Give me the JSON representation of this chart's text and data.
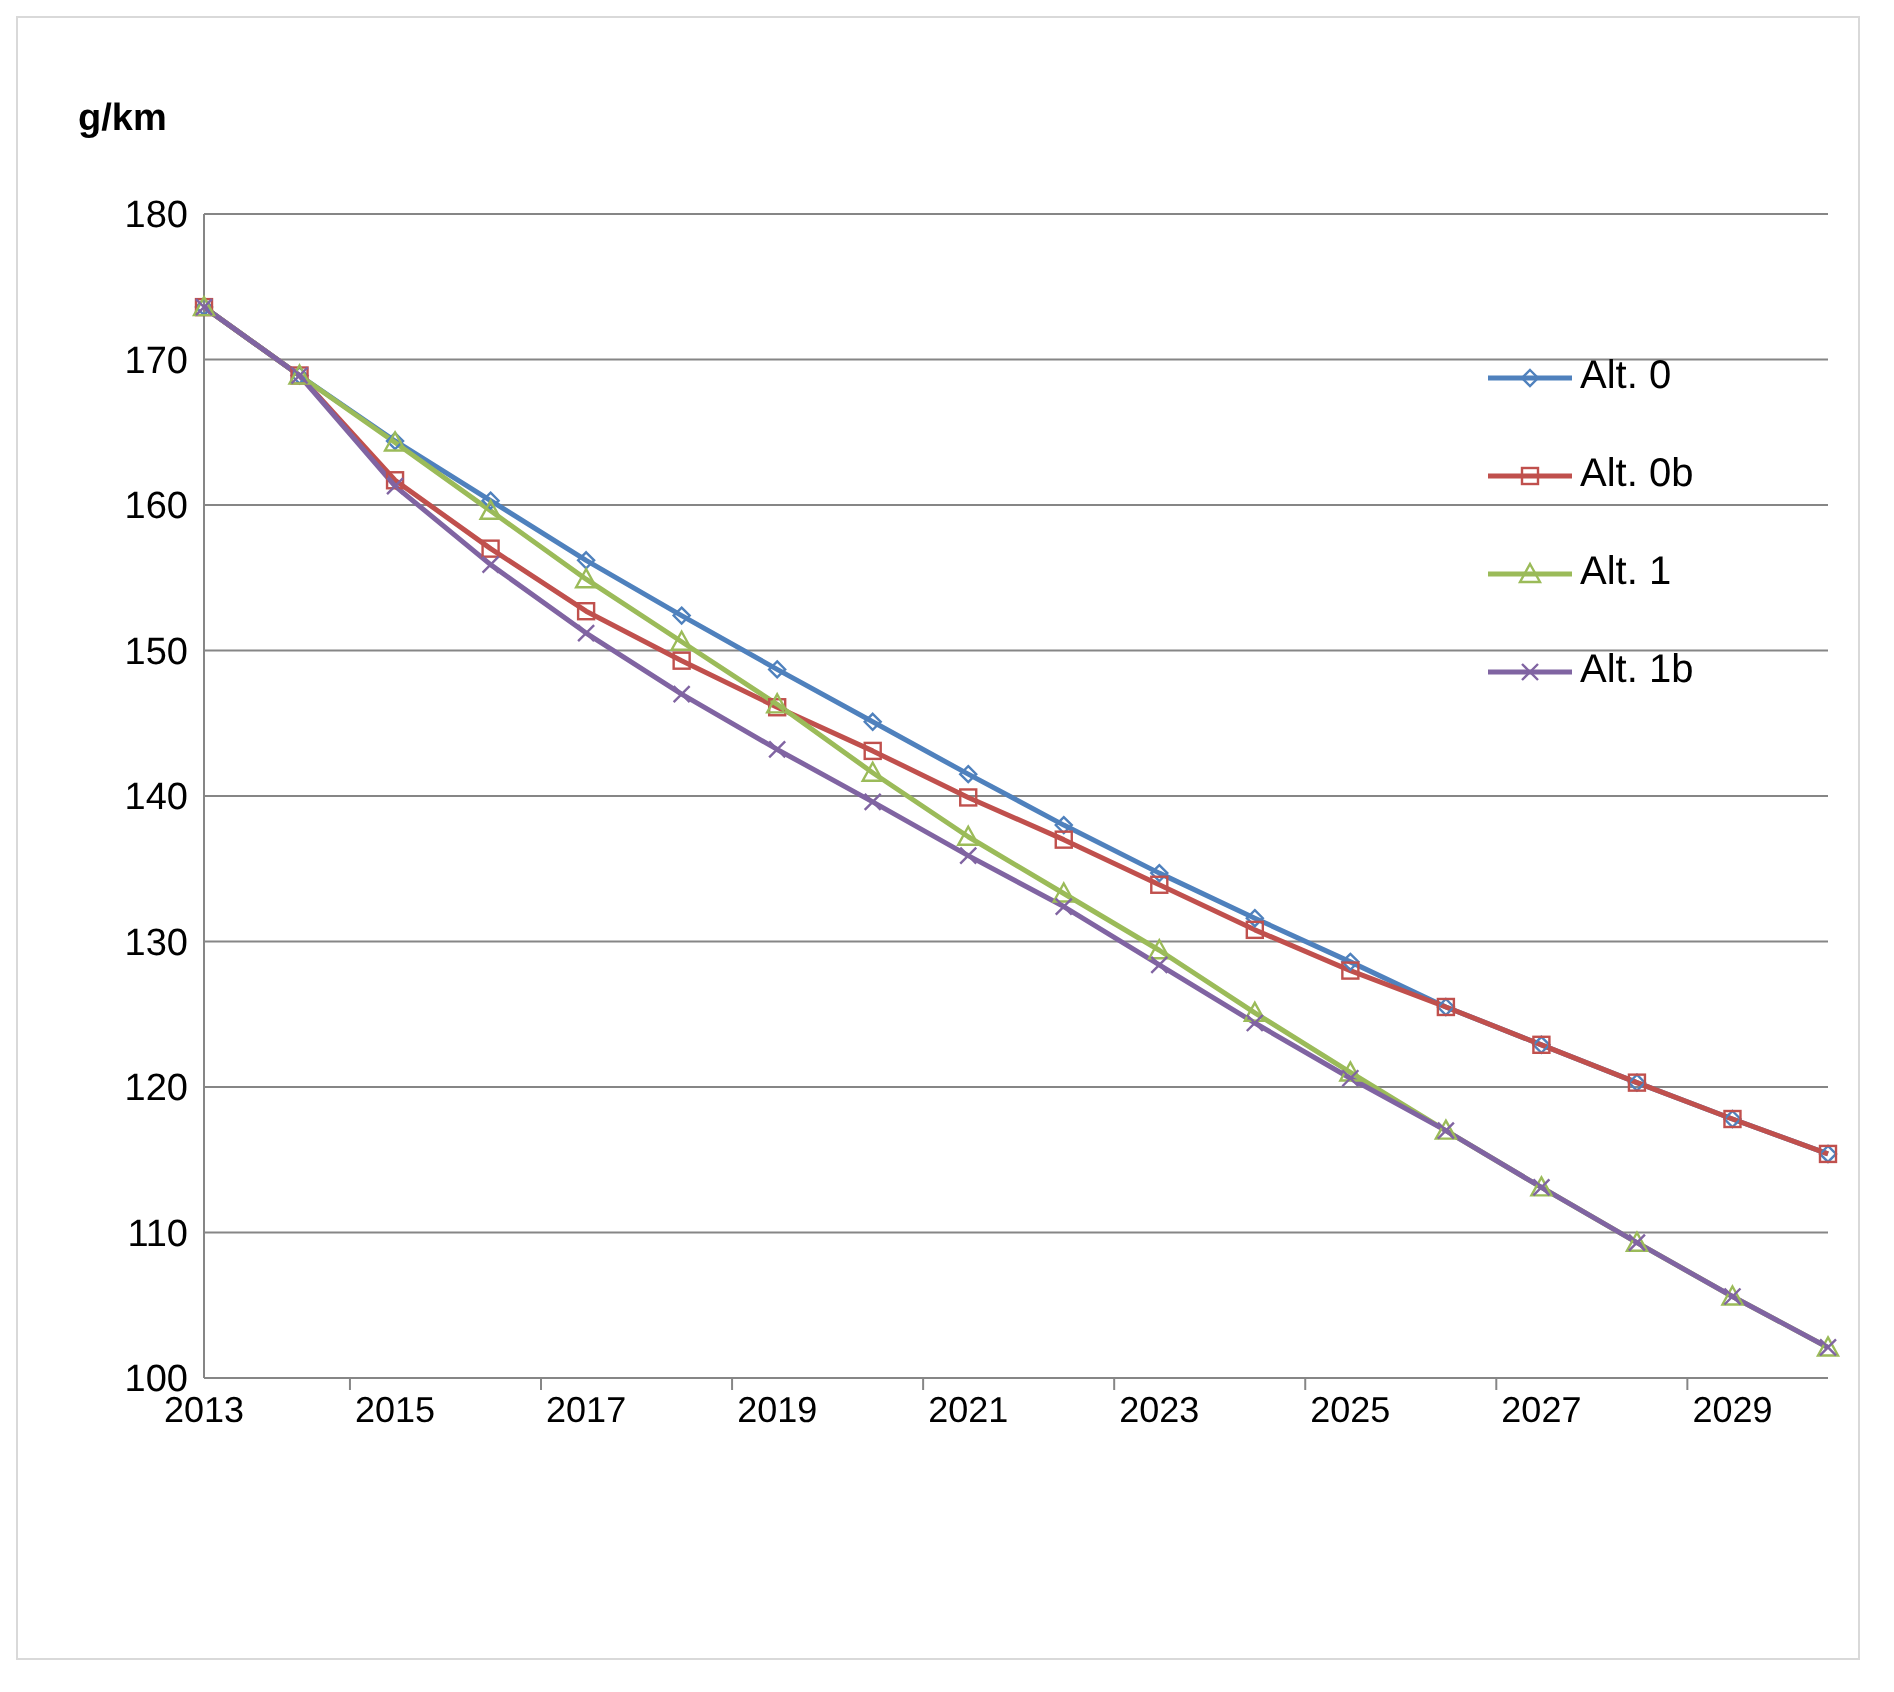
{
  "chart_data": {
    "type": "line",
    "ylabel": "g/km",
    "categories": [
      "2013",
      null,
      "2015",
      null,
      "2017",
      null,
      "2019",
      null,
      "2021",
      null,
      "2023",
      null,
      "2025",
      null,
      "2027",
      null,
      "2029",
      null
    ],
    "series": [
      {
        "name": "Alt. 0",
        "color": "#4f81bd",
        "marker": "diamond",
        "values": [
          173.6,
          168.9,
          164.4,
          160.3,
          156.2,
          152.4,
          148.7,
          145.1,
          141.5,
          138.0,
          134.7,
          131.6,
          128.6,
          125.5,
          122.9,
          120.3,
          117.8,
          115.4
        ]
      },
      {
        "name": "Alt. 0b",
        "color": "#c0504d",
        "marker": "square",
        "values": [
          173.6,
          168.9,
          161.7,
          157.0,
          152.7,
          149.3,
          146.1,
          143.1,
          139.9,
          137.0,
          133.9,
          130.8,
          128.0,
          125.5,
          122.9,
          120.3,
          117.8,
          115.4
        ]
      },
      {
        "name": "Alt. 1",
        "color": "#9bbb59",
        "marker": "triangle",
        "values": [
          173.6,
          168.9,
          164.3,
          159.6,
          154.9,
          150.6,
          146.3,
          141.6,
          137.2,
          133.3,
          129.4,
          125.1,
          121.0,
          117.0,
          113.1,
          109.3,
          105.6,
          102.1
        ]
      },
      {
        "name": "Alt. 1b",
        "color": "#8064a2",
        "marker": "cross",
        "values": [
          173.6,
          168.9,
          161.3,
          155.9,
          151.2,
          147.0,
          143.2,
          139.6,
          135.9,
          132.4,
          128.4,
          124.4,
          120.6,
          117.0,
          113.1,
          109.3,
          105.6,
          102.1
        ]
      }
    ],
    "ylim": [
      100,
      180
    ],
    "yticks": [
      100,
      110,
      120,
      130,
      140,
      150,
      160,
      170,
      180
    ],
    "grid": "y",
    "legend": "top right",
    "line_style": "solid"
  }
}
